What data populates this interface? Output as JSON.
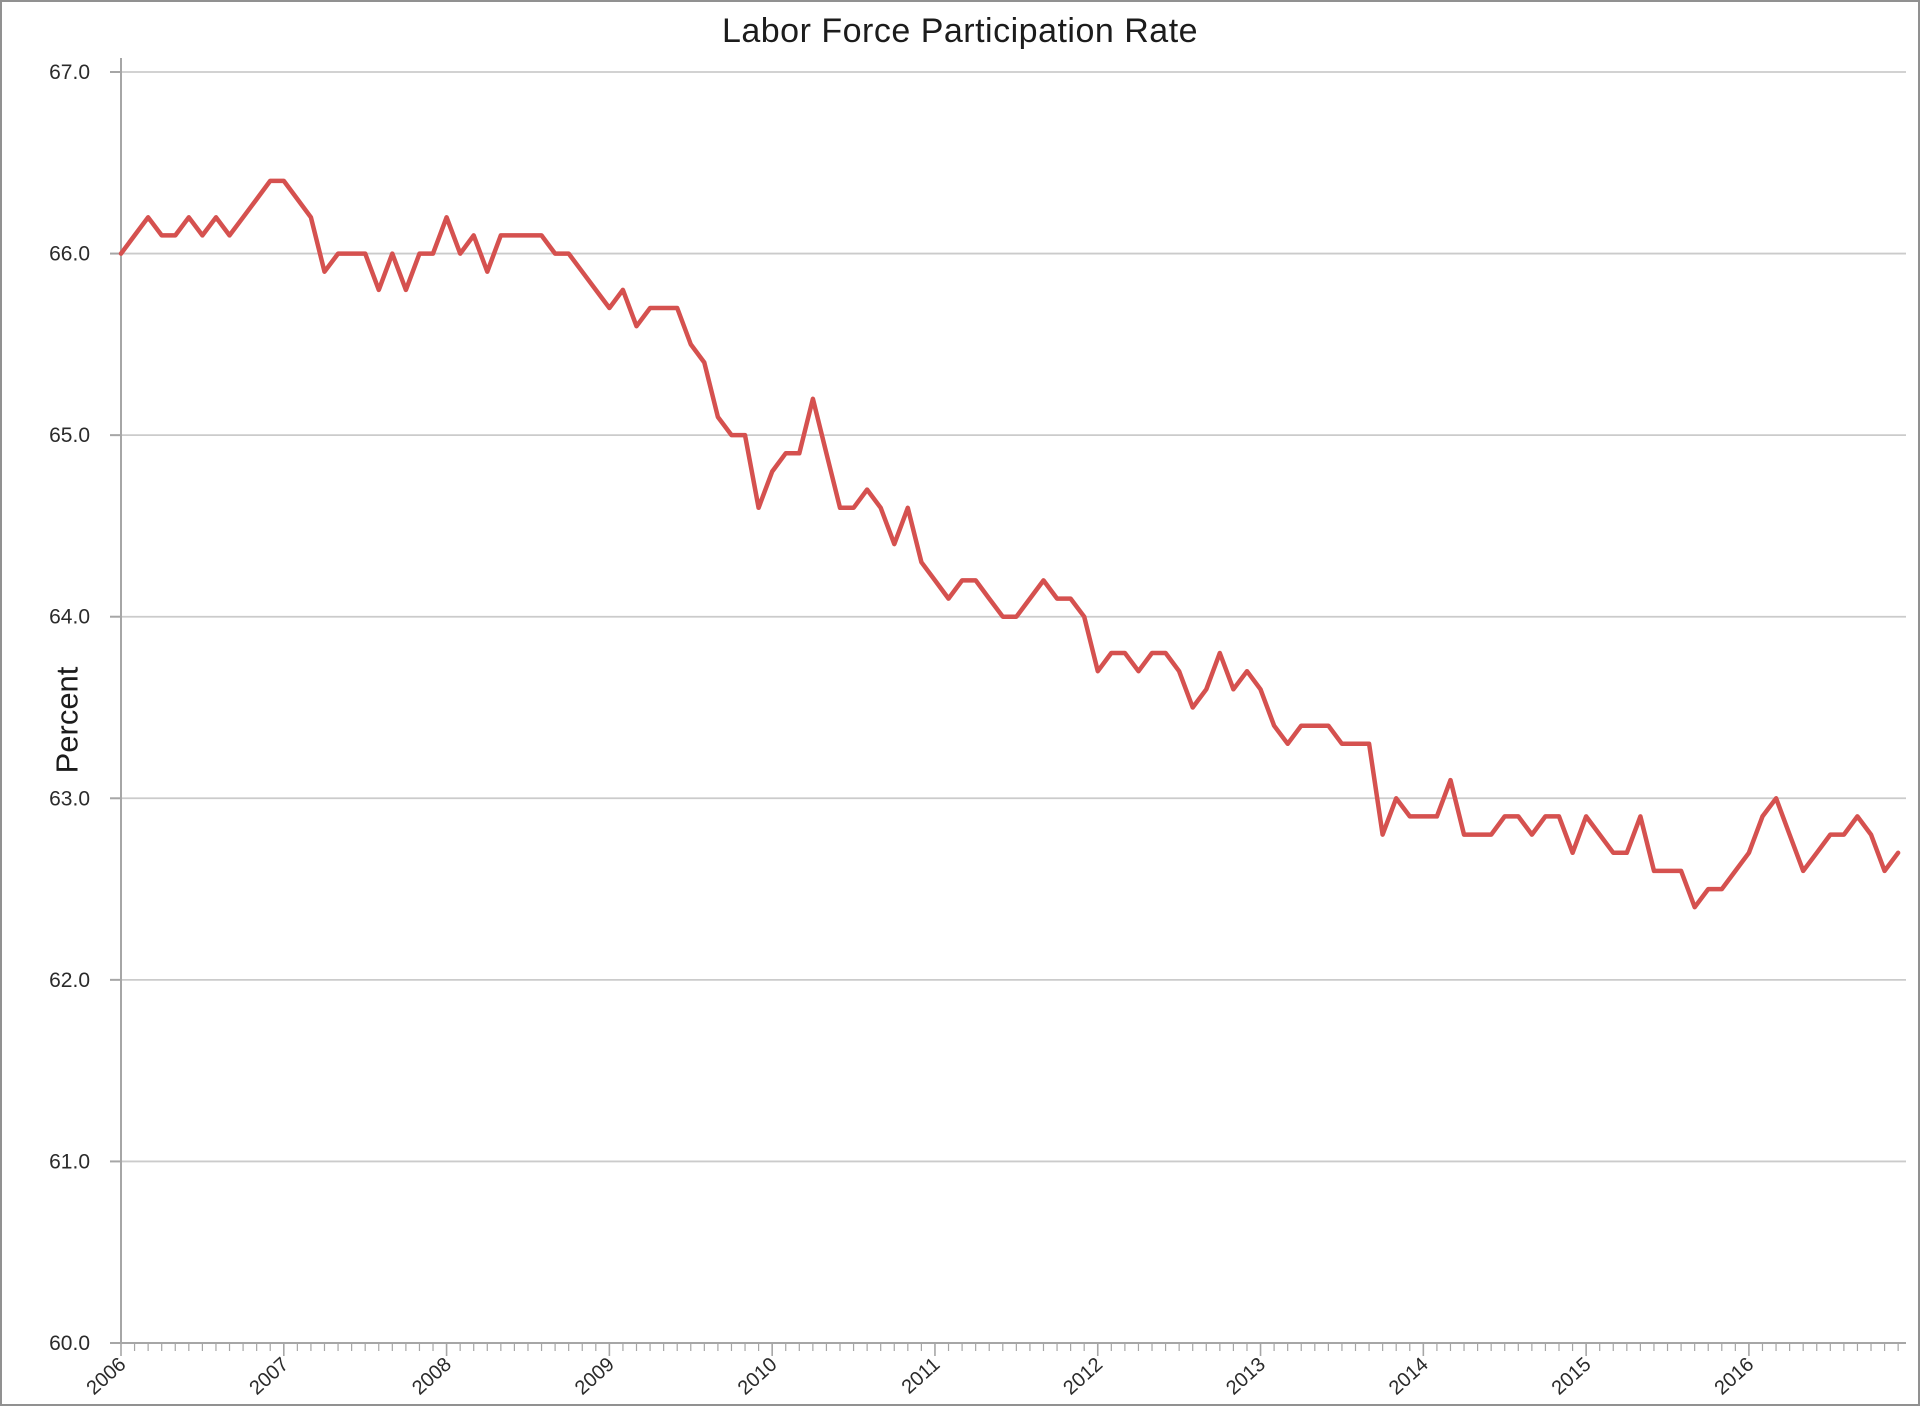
{
  "window": {
    "frame_color": "#919191",
    "background": "#ffffff"
  },
  "chart_data": {
    "type": "line",
    "title": "Labor Force Participation Rate",
    "xlabel": "",
    "ylabel": "Percent",
    "frequency": "monthly",
    "x_start_year": 2006,
    "x_end_year": 2016,
    "x_tick_labels": [
      "2006",
      "2007",
      "2008",
      "2009",
      "2010",
      "2011",
      "2012",
      "2013",
      "2014",
      "2015",
      "2016"
    ],
    "y_tick_labels": [
      "67.0",
      "66.0",
      "65.0",
      "64.0",
      "63.0",
      "62.0",
      "61.0",
      "60.0"
    ],
    "ylim": [
      60.0,
      67.0
    ],
    "grid": "horizontal",
    "legend": "none",
    "line_color": "#D5514F",
    "gridline_color": "#cbcbcb",
    "axis_color": "#a6a6a6",
    "tick_color": "#a6a6a6",
    "text_color": "#2b2b2b",
    "series": [
      {
        "name": "Labor Force Participation Rate",
        "units": "Percent",
        "values": [
          66.0,
          66.1,
          66.2,
          66.1,
          66.1,
          66.2,
          66.1,
          66.2,
          66.1,
          66.2,
          66.3,
          66.4,
          66.4,
          66.3,
          66.2,
          65.9,
          66.0,
          66.0,
          66.0,
          65.8,
          66.0,
          65.8,
          66.0,
          66.0,
          66.2,
          66.0,
          66.1,
          65.9,
          66.1,
          66.1,
          66.1,
          66.1,
          66.0,
          66.0,
          65.9,
          65.8,
          65.7,
          65.8,
          65.6,
          65.7,
          65.7,
          65.7,
          65.5,
          65.4,
          65.1,
          65.0,
          65.0,
          64.6,
          64.8,
          64.9,
          64.9,
          65.2,
          64.9,
          64.6,
          64.6,
          64.7,
          64.6,
          64.4,
          64.6,
          64.3,
          64.2,
          64.1,
          64.2,
          64.2,
          64.1,
          64.0,
          64.0,
          64.1,
          64.2,
          64.1,
          64.1,
          64.0,
          63.7,
          63.8,
          63.8,
          63.7,
          63.8,
          63.8,
          63.7,
          63.5,
          63.6,
          63.8,
          63.6,
          63.7,
          63.6,
          63.4,
          63.3,
          63.4,
          63.4,
          63.4,
          63.3,
          63.3,
          63.3,
          62.8,
          63.0,
          62.9,
          62.9,
          62.9,
          63.1,
          62.8,
          62.8,
          62.8,
          62.9,
          62.9,
          62.8,
          62.9,
          62.9,
          62.7,
          62.9,
          62.8,
          62.7,
          62.7,
          62.9,
          62.6,
          62.6,
          62.6,
          62.4,
          62.5,
          62.5,
          62.6,
          62.7,
          62.9,
          63.0,
          62.8,
          62.6,
          62.7,
          62.8,
          62.8,
          62.9,
          62.8,
          62.6,
          62.7
        ]
      }
    ]
  }
}
